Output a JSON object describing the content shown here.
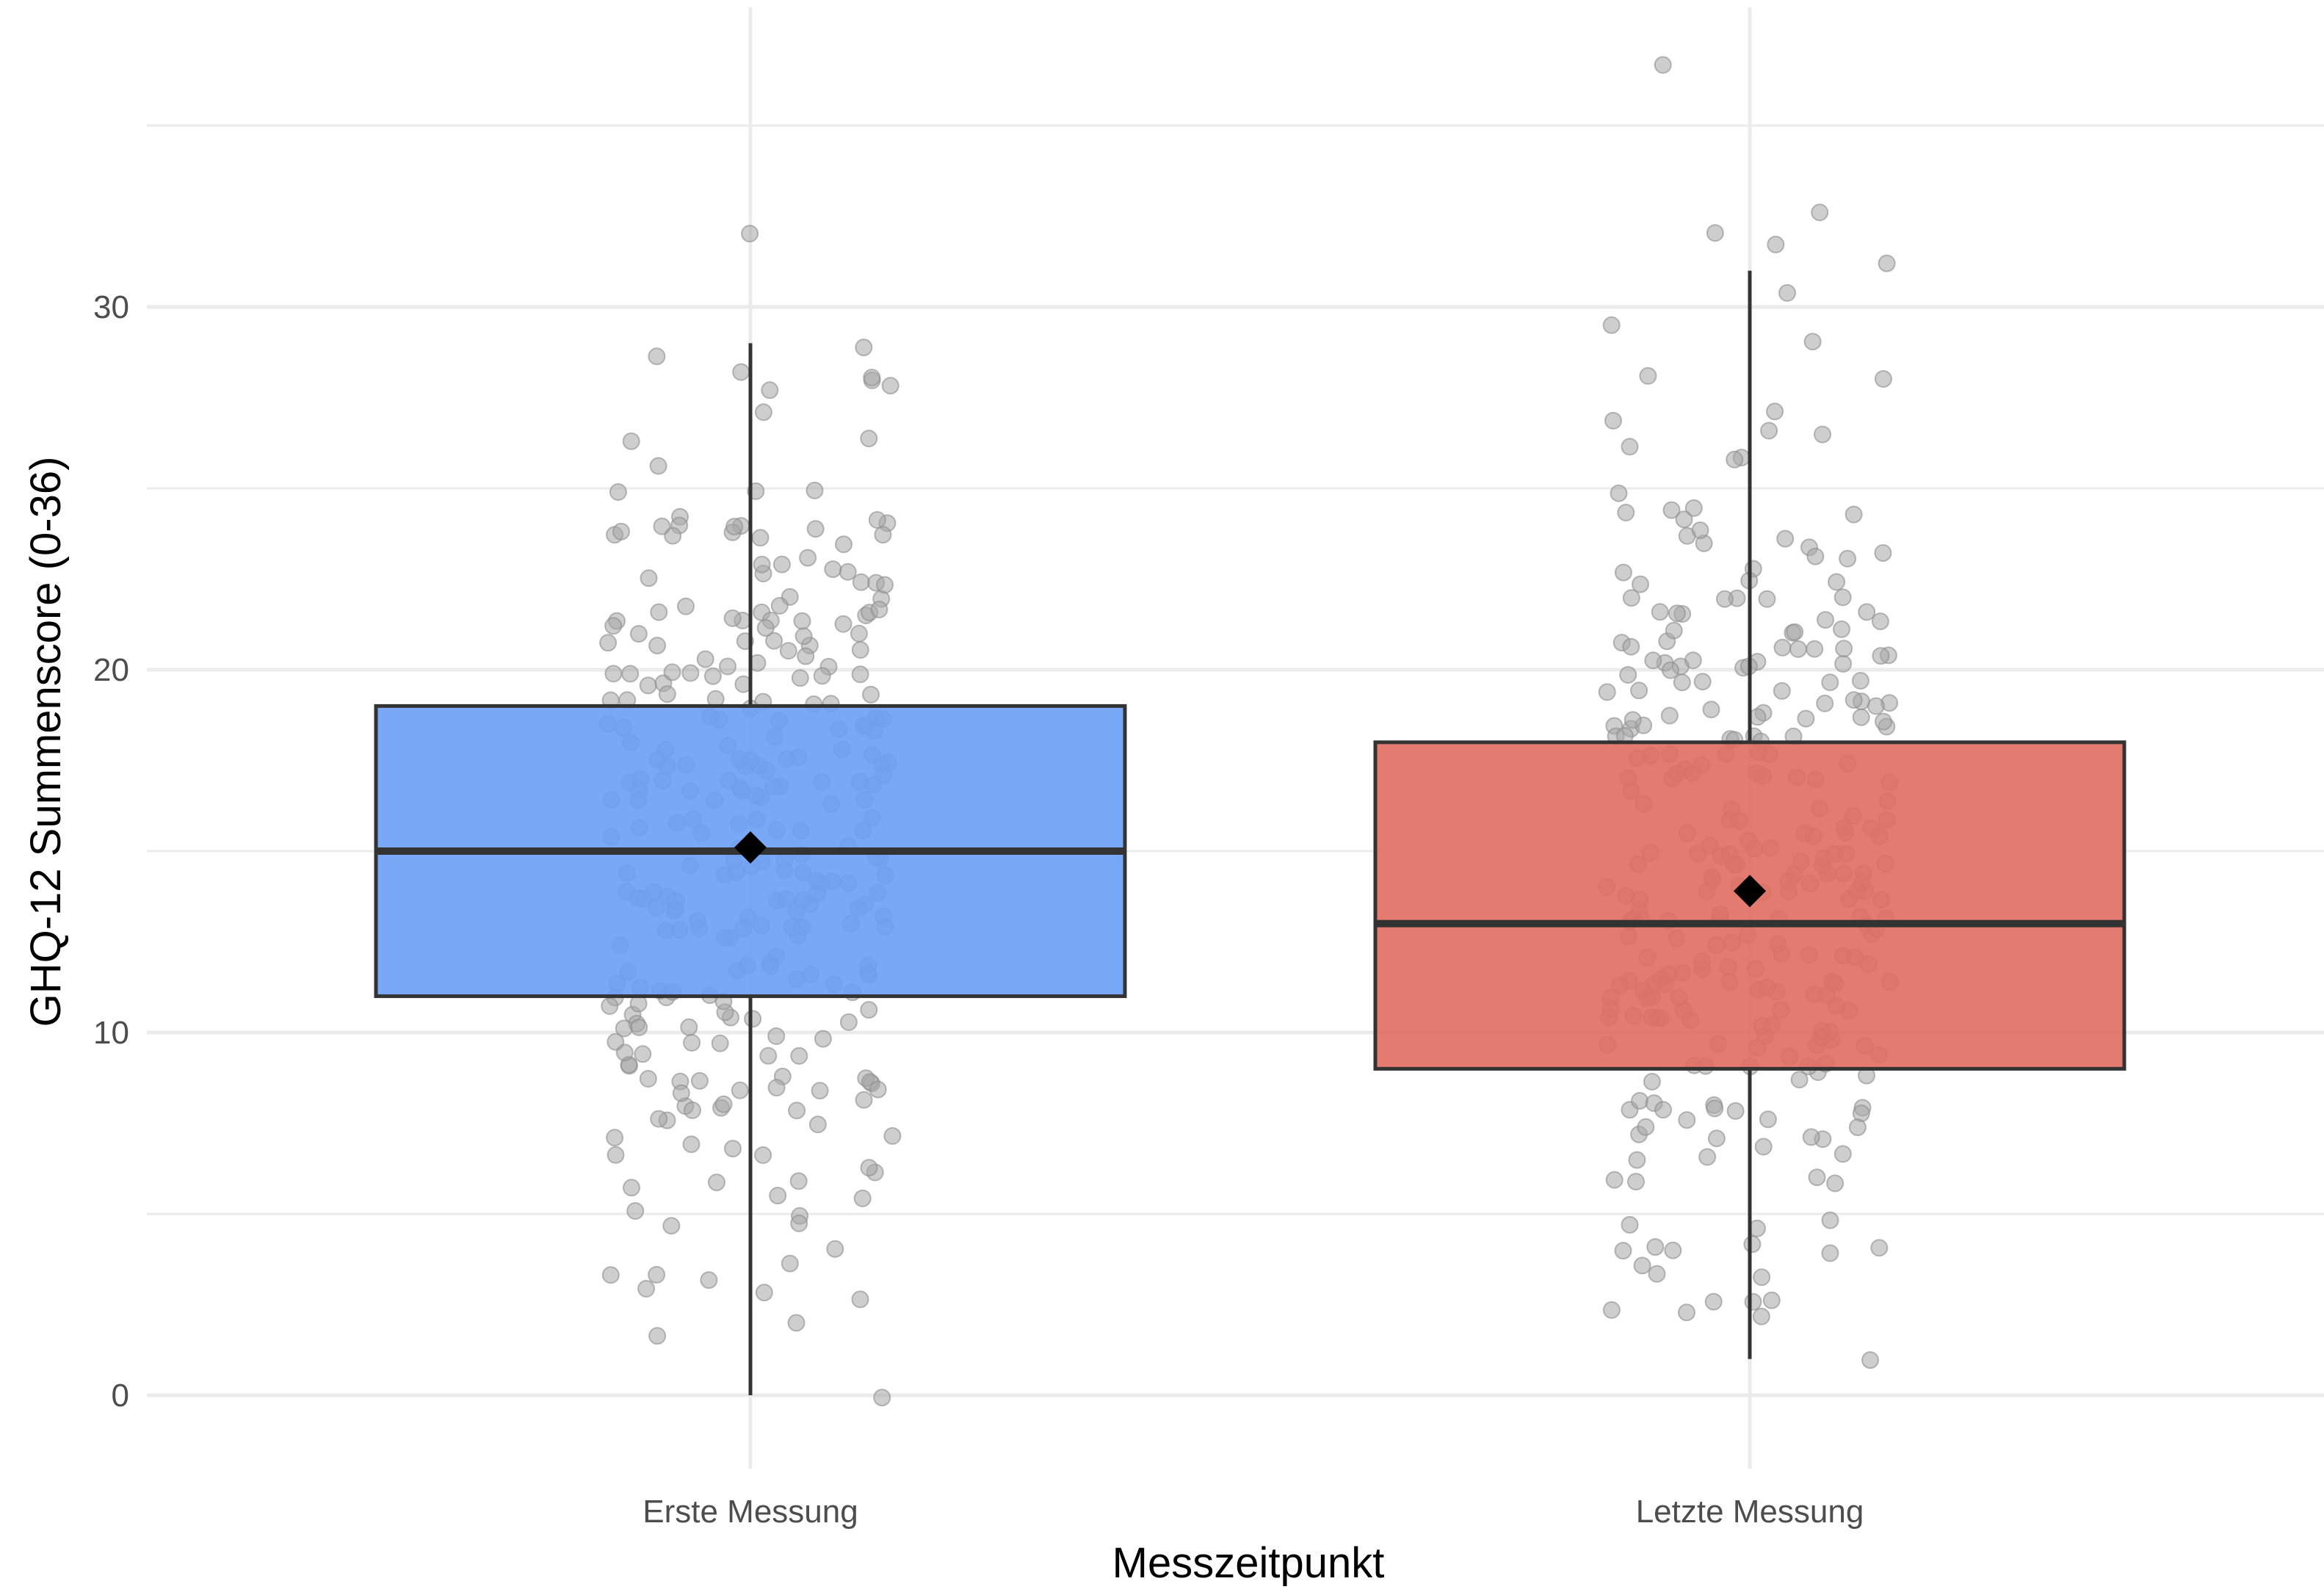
{
  "chart_data": {
    "type": "box",
    "title": "",
    "xlabel": "Messzeitpunkt",
    "ylabel": "GHQ-12 Summenscore (0-36)",
    "ylim": [
      -2.8,
      38
    ],
    "yticks": [
      0,
      10,
      20,
      30
    ],
    "categories": [
      "Erste Messung",
      "Letzte Messung"
    ],
    "grid": true,
    "legend": "none",
    "colors": {
      "Erste Messung": "#6aa0f5",
      "Letzte Messung": "#e06d62",
      "box_outline": "#333333",
      "points": "#a6a6a6",
      "mean_marker": "#000000",
      "grid": "#ebebeb"
    },
    "series": [
      {
        "category": "Erste Messung",
        "whisker_low": 0,
        "q1": 11,
        "median": 15,
        "q3": 19,
        "whisker_high": 29,
        "mean": 15.1,
        "n_points": 300
      },
      {
        "category": "Letzte Messung",
        "whisker_low": 1,
        "q1": 9,
        "median": 13,
        "q3": 18,
        "whisker_high": 31,
        "mean": 13.9,
        "n_points": 300
      }
    ],
    "notable_points": [
      {
        "category": "Erste Messung",
        "values": [
          32.2,
          29,
          28.7,
          28.2,
          28,
          27.8,
          -0.2,
          2.1,
          2.7,
          3.1
        ]
      },
      {
        "category": "Letzte Messung",
        "values": [
          36.6,
          32.5,
          32.2,
          31.8,
          31.3,
          30.3,
          1.1,
          2.2,
          2.3,
          2.6
        ]
      }
    ]
  }
}
